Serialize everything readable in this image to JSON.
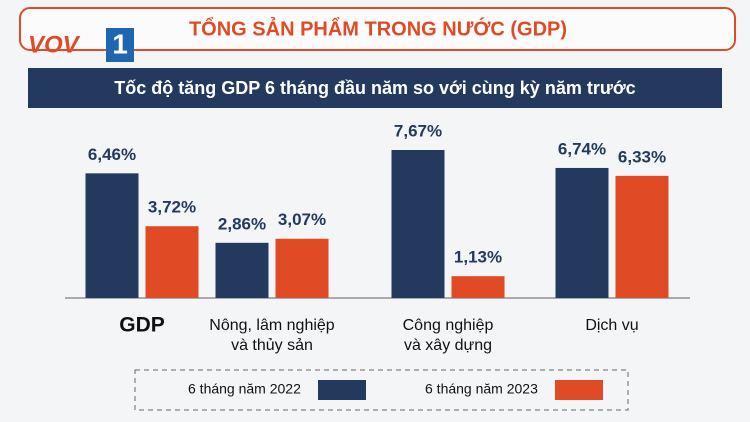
{
  "chart_data": {
    "type": "bar",
    "title": "TỔNG SẢN PHẨM TRONG NƯỚC (GDP)",
    "logo": {
      "brand": "VOV",
      "channel": "1"
    },
    "subtitle": "Tốc độ tăng GDP 6 tháng đầu năm so với cùng kỳ năm trước",
    "categories": [
      [
        "GDP"
      ],
      [
        "Nông, lâm nghiệp",
        "và thủy sản"
      ],
      [
        "Công nghiệp",
        "và xây dựng"
      ],
      [
        "Dịch vụ"
      ]
    ],
    "series": [
      {
        "name": "6 tháng năm 2022",
        "color": "#233a5e",
        "values": [
          6.46,
          2.86,
          7.67,
          6.74
        ],
        "value_labels": [
          "6,46%",
          "2,86%",
          "7,67%",
          "6,74%"
        ]
      },
      {
        "name": "6 tháng năm 2023",
        "color": "#e04a25",
        "values": [
          3.72,
          3.07,
          1.13,
          6.33
        ],
        "value_labels": [
          "3,72%",
          "3,07%",
          "1,13%",
          "6,33%"
        ]
      }
    ],
    "legend": "bottom"
  }
}
